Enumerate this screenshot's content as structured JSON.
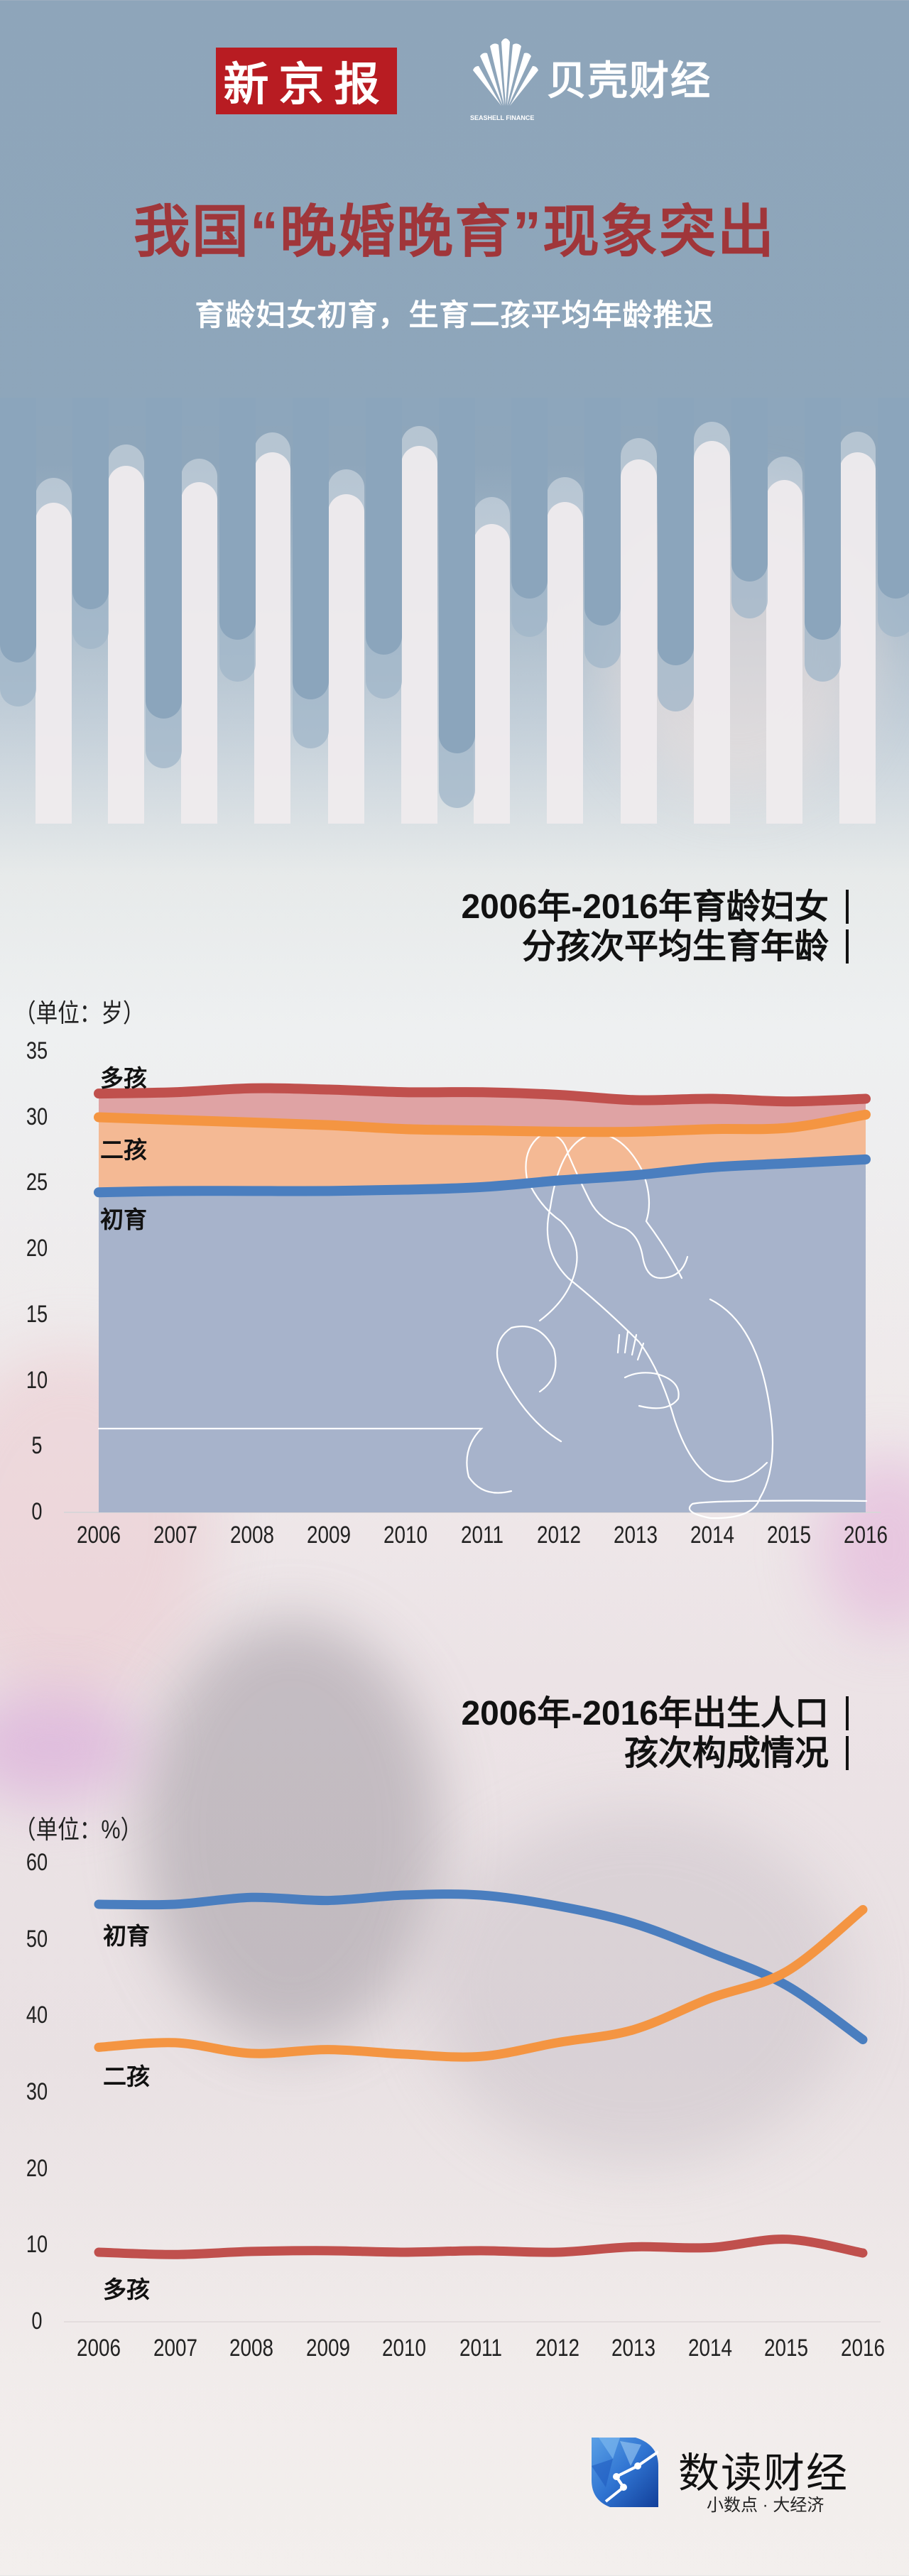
{
  "header": {
    "logo_left": "新京报",
    "logo_right": "贝壳财经",
    "logo_right_sub": "SEASHELL FINANCE",
    "title": "我国“晚婚晚育”现象突出",
    "subtitle": "育龄妇女初育，生育二孩平均年龄推迟"
  },
  "colors": {
    "title_red": "#a0363a",
    "first_birth": "#4a7ebf",
    "second_child": "#f49542",
    "multi_child": "#c0504d",
    "first_fill": "#a7b3cb",
    "second_fill": "#f4b994",
    "multi_fill": "#dfa3a4"
  },
  "chart1": {
    "title_line1": "2006年-2016年育龄妇女",
    "title_line2": "分孩次平均生育年龄",
    "unit": "（单位：岁）",
    "labels": {
      "multi": "多孩",
      "second": "二孩",
      "first": "初育"
    }
  },
  "chart2": {
    "title_line1": "2006年-2016年出生人口",
    "title_line2": "孩次构成情况",
    "unit": "（单位：%）",
    "labels": {
      "first": "初育",
      "second": "二孩",
      "multi": "多孩"
    }
  },
  "footer": {
    "brand": "数读财经",
    "slogan": "小数点 · 大经济"
  },
  "chart_data": [
    {
      "type": "area",
      "title": "2006年-2016年育龄妇女分孩次平均生育年龄",
      "xlabel": "",
      "ylabel": "（单位：岁）",
      "ylim": [
        0,
        35
      ],
      "yticks": [
        0,
        5,
        10,
        15,
        20,
        25,
        30,
        35
      ],
      "grid": false,
      "categories": [
        "2006",
        "2007",
        "2008",
        "2009",
        "2010",
        "2011",
        "2012",
        "2013",
        "2014",
        "2015",
        "2016"
      ],
      "series": [
        {
          "name": "多孩",
          "values": [
            31.8,
            31.9,
            32.2,
            32.1,
            31.9,
            31.9,
            31.7,
            31.3,
            31.4,
            31.2,
            31.4
          ]
        },
        {
          "name": "二孩",
          "values": [
            30.0,
            29.8,
            29.6,
            29.4,
            29.1,
            29.0,
            28.9,
            28.9,
            29.1,
            29.2,
            30.2
          ]
        },
        {
          "name": "初育",
          "values": [
            24.3,
            24.4,
            24.4,
            24.4,
            24.5,
            24.7,
            25.2,
            25.6,
            26.2,
            26.5,
            26.8
          ]
        }
      ]
    },
    {
      "type": "line",
      "title": "2006年-2016年出生人口孩次构成情况",
      "xlabel": "",
      "ylabel": "（单位：%）",
      "ylim": [
        0,
        60
      ],
      "yticks": [
        0,
        10,
        20,
        30,
        40,
        50,
        60
      ],
      "grid": false,
      "categories": [
        "2006",
        "2007",
        "2008",
        "2009",
        "2010",
        "2011",
        "2012",
        "2013",
        "2014",
        "2015",
        "2016"
      ],
      "series": [
        {
          "name": "初育",
          "values": [
            54.6,
            54.6,
            55.5,
            55.1,
            55.8,
            55.8,
            54.4,
            52.1,
            48.3,
            44.0,
            36.9
          ]
        },
        {
          "name": "二孩",
          "values": [
            35.9,
            36.5,
            35.1,
            35.6,
            35.0,
            34.7,
            36.5,
            38.2,
            42.3,
            45.8,
            53.9
          ]
        },
        {
          "name": "多孩",
          "values": [
            9.1,
            8.8,
            9.2,
            9.3,
            9.1,
            9.3,
            9.1,
            9.8,
            9.7,
            10.8,
            9.0
          ]
        }
      ]
    }
  ]
}
